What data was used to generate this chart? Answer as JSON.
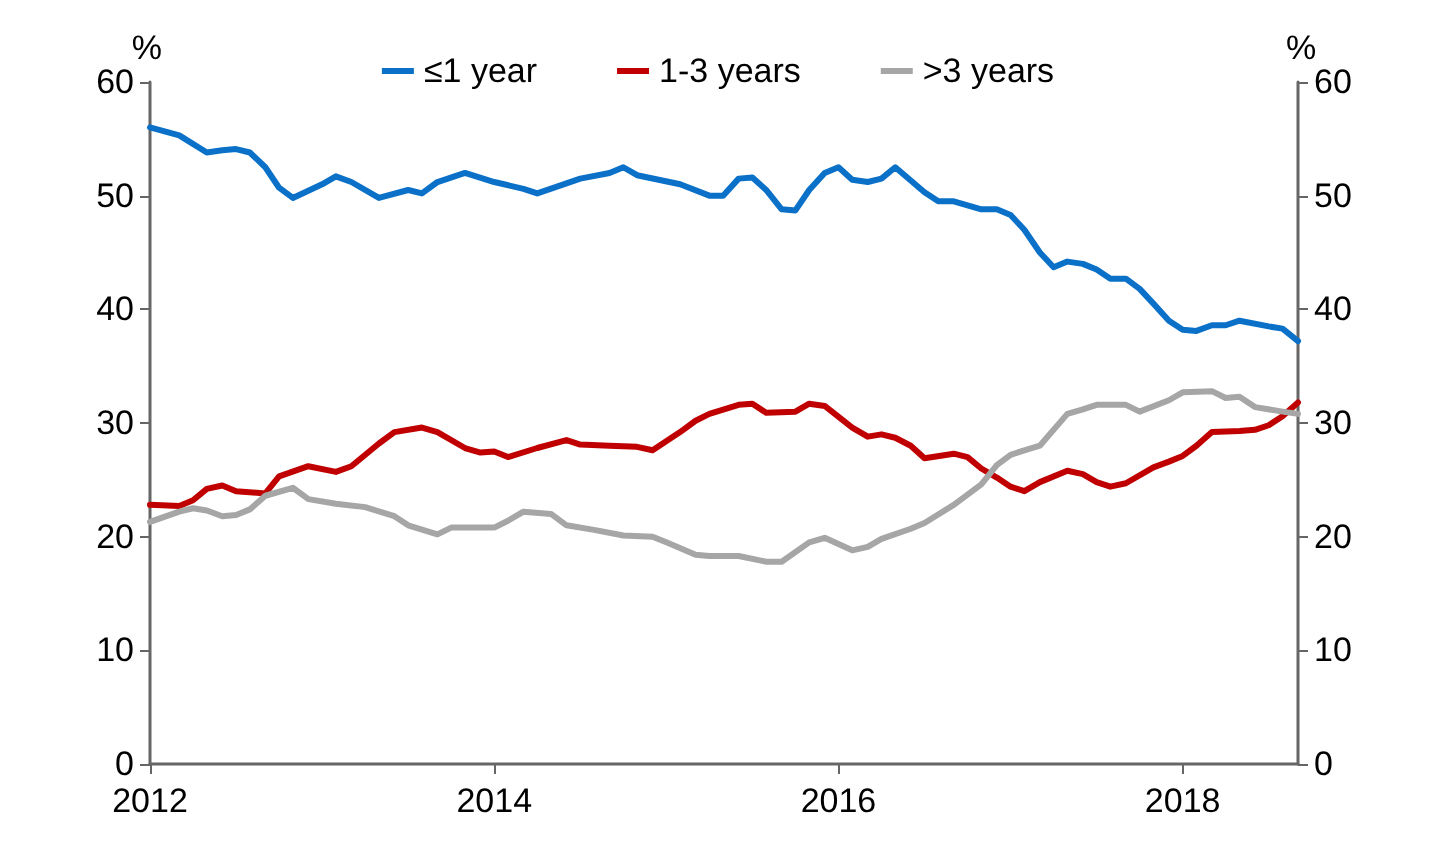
{
  "chart_data": {
    "type": "line",
    "ylabel": "%",
    "y2label": "%",
    "xlim": [
      2012,
      2018.67
    ],
    "xticks": [
      2012,
      2014,
      2016,
      2018
    ],
    "ylim": [
      0,
      60
    ],
    "yticks": [
      0,
      10,
      20,
      30,
      40,
      50,
      60
    ],
    "y2lim": [
      0,
      60
    ],
    "y2ticks": [
      0,
      10,
      20,
      30,
      40,
      50,
      60
    ],
    "grid": false,
    "legend": "top",
    "marker": "none",
    "line_style": "solid",
    "series": [
      {
        "name": "≤1 year",
        "color": "#0a70c8",
        "x": [
          2012,
          2012.17,
          2012.33,
          2012.42,
          2012.5,
          2012.58,
          2012.67,
          2012.75,
          2012.83,
          2013,
          2013.08,
          2013.17,
          2013.33,
          2013.5,
          2013.58,
          2013.67,
          2013.83,
          2014,
          2014.17,
          2014.25,
          2014.5,
          2014.67,
          2014.75,
          2014.83,
          2015.08,
          2015.25,
          2015.33,
          2015.42,
          2015.5,
          2015.58,
          2015.67,
          2015.75,
          2015.83,
          2015.92,
          2016,
          2016.08,
          2016.17,
          2016.25,
          2016.33,
          2016.5,
          2016.58,
          2016.67,
          2016.83,
          2016.92,
          2017,
          2017.08,
          2017.17,
          2017.25,
          2017.33,
          2017.42,
          2017.5,
          2017.58,
          2017.67,
          2017.75,
          2017.83,
          2017.92,
          2018,
          2018.08,
          2018.17,
          2018.25,
          2018.33,
          2018.5,
          2018.58,
          2018.67
        ],
        "values": [
          56,
          55.3,
          53.8,
          54,
          54.1,
          53.8,
          52.5,
          50.7,
          49.8,
          51,
          51.7,
          51.2,
          49.8,
          50.5,
          50.2,
          51.2,
          52,
          51.2,
          50.6,
          50.2,
          51.5,
          52,
          52.5,
          51.8,
          51,
          50,
          50,
          51.5,
          51.6,
          50.5,
          48.8,
          48.7,
          50.5,
          52,
          52.5,
          51.4,
          51.2,
          51.5,
          52.5,
          50.3,
          49.5,
          49.5,
          48.8,
          48.8,
          48.3,
          47,
          45,
          43.7,
          44.2,
          44,
          43.5,
          42.7,
          42.7,
          41.8,
          40.5,
          39,
          38.2,
          38.1,
          38.6,
          38.6,
          39,
          38.5,
          38.3,
          37.2
        ]
      },
      {
        "name": "1-3 years",
        "color": "#c00000",
        "x": [
          2012,
          2012.17,
          2012.25,
          2012.33,
          2012.42,
          2012.5,
          2012.67,
          2012.75,
          2012.92,
          2013.08,
          2013.17,
          2013.33,
          2013.42,
          2013.58,
          2013.67,
          2013.83,
          2013.92,
          2014,
          2014.08,
          2014.25,
          2014.42,
          2014.5,
          2014.67,
          2014.83,
          2014.92,
          2015.08,
          2015.17,
          2015.25,
          2015.42,
          2015.5,
          2015.58,
          2015.75,
          2015.83,
          2015.92,
          2016.08,
          2016.17,
          2016.25,
          2016.33,
          2016.42,
          2016.5,
          2016.67,
          2016.75,
          2016.83,
          2016.92,
          2017,
          2017.08,
          2017.17,
          2017.33,
          2017.42,
          2017.5,
          2017.58,
          2017.67,
          2017.83,
          2017.92,
          2018,
          2018.08,
          2018.17,
          2018.33,
          2018.42,
          2018.5,
          2018.58,
          2018.67
        ],
        "values": [
          22.8,
          22.7,
          23.2,
          24.2,
          24.5,
          24,
          23.8,
          25.3,
          26.2,
          25.7,
          26.2,
          28.2,
          29.2,
          29.6,
          29.2,
          27.8,
          27.4,
          27.5,
          27,
          27.8,
          28.5,
          28.1,
          28,
          27.9,
          27.6,
          29.2,
          30.2,
          30.8,
          31.6,
          31.7,
          30.9,
          31,
          31.7,
          31.5,
          29.6,
          28.8,
          29,
          28.7,
          28,
          26.9,
          27.3,
          27,
          26,
          25.2,
          24.4,
          24,
          24.8,
          25.8,
          25.5,
          24.8,
          24.4,
          24.7,
          26.1,
          26.6,
          27.1,
          28,
          29.2,
          29.3,
          29.4,
          29.8,
          30.6,
          31.8
        ]
      },
      {
        "name": ">3 years",
        "color": "#a6a6a6",
        "x": [
          2012,
          2012.17,
          2012.25,
          2012.33,
          2012.42,
          2012.5,
          2012.58,
          2012.67,
          2012.83,
          2012.92,
          2013.08,
          2013.25,
          2013.42,
          2013.5,
          2013.67,
          2013.75,
          2013.83,
          2014,
          2014.08,
          2014.17,
          2014.33,
          2014.42,
          2014.58,
          2014.75,
          2014.92,
          2015,
          2015.17,
          2015.25,
          2015.42,
          2015.58,
          2015.67,
          2015.83,
          2015.92,
          2016.08,
          2016.17,
          2016.25,
          2016.42,
          2016.5,
          2016.67,
          2016.83,
          2016.92,
          2017,
          2017.08,
          2017.17,
          2017.33,
          2017.42,
          2017.5,
          2017.67,
          2017.75,
          2017.92,
          2018,
          2018.17,
          2018.25,
          2018.33,
          2018.42,
          2018.58,
          2018.67
        ],
        "values": [
          21.3,
          22.2,
          22.5,
          22.3,
          21.8,
          21.9,
          22.4,
          23.6,
          24.3,
          23.3,
          22.9,
          22.6,
          21.8,
          21,
          20.2,
          20.8,
          20.8,
          20.8,
          21.4,
          22.2,
          22,
          21,
          20.6,
          20.1,
          20,
          19.5,
          18.4,
          18.3,
          18.3,
          17.8,
          17.8,
          19.5,
          19.9,
          18.8,
          19.1,
          19.8,
          20.7,
          21.2,
          22.8,
          24.6,
          26.3,
          27.2,
          27.6,
          28,
          30.8,
          31.2,
          31.6,
          31.6,
          31,
          32,
          32.7,
          32.8,
          32.2,
          32.3,
          31.4,
          31,
          30.8
        ]
      }
    ]
  }
}
